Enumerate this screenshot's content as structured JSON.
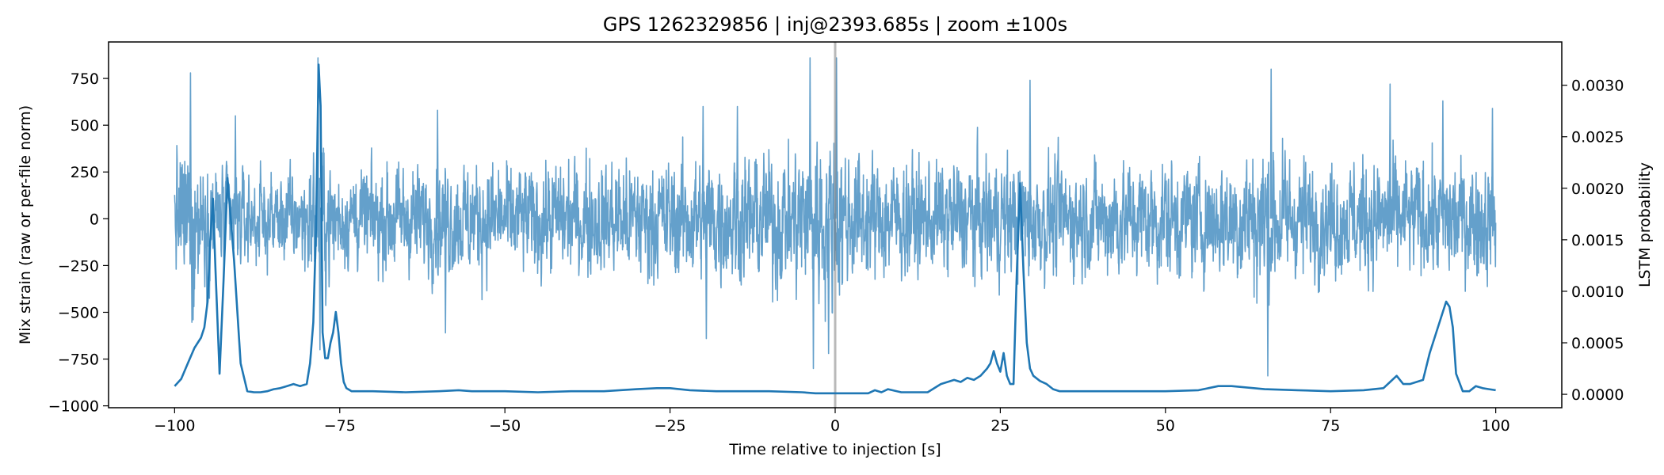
{
  "chart_data": {
    "type": "line",
    "title": "GPS 1262329856 | inj@2393.685s | zoom ±100s",
    "xlabel": "Time relative to injection [s]",
    "ylabel_left": "Mix strain (raw or per-file norm)",
    "ylabel_right": "LSTM probability",
    "xlim": [
      -110,
      110
    ],
    "ylim_left": [
      -1010,
      945
    ],
    "ylim_right": [
      -0.00013,
      0.00342
    ],
    "x_ticks": [
      -100,
      -75,
      -50,
      -25,
      0,
      25,
      50,
      75,
      100
    ],
    "x_tick_labels": [
      "−100",
      "−75",
      "−50",
      "−25",
      "0",
      "25",
      "50",
      "75",
      "100"
    ],
    "y_left_ticks": [
      750,
      500,
      250,
      0,
      -250,
      -500,
      -750,
      -1000
    ],
    "y_left_tick_labels": [
      "750",
      "500",
      "250",
      "0",
      "−250",
      "−500",
      "−750",
      "−1000"
    ],
    "y_right_ticks": [
      0.003,
      0.0025,
      0.002,
      0.0015,
      0.001,
      0.0005,
      0
    ],
    "y_right_tick_labels": [
      "0.0030",
      "0.0025",
      "0.0020",
      "0.0015",
      "0.0010",
      "0.0005",
      "0.0000"
    ],
    "injection_marker_x": 0,
    "series": [
      {
        "name": "Mix strain",
        "axis": "left",
        "color": "#64a0cb",
        "kind": "dense-noise",
        "amplitude_envelope": [
          [
            -100,
            420
          ],
          [
            -97,
            700
          ],
          [
            -96,
            450
          ],
          [
            -93,
            380
          ],
          [
            -90,
            340
          ],
          [
            -87,
            330
          ],
          [
            -84,
            330
          ],
          [
            -81,
            350
          ],
          [
            -78,
            520
          ],
          [
            -77,
            500
          ],
          [
            -75,
            330
          ],
          [
            -70,
            350
          ],
          [
            -65,
            380
          ],
          [
            -60,
            400
          ],
          [
            -55,
            420
          ],
          [
            -50,
            370
          ],
          [
            -45,
            400
          ],
          [
            -40,
            410
          ],
          [
            -35,
            420
          ],
          [
            -30,
            420
          ],
          [
            -25,
            420
          ],
          [
            -20,
            450
          ],
          [
            -15,
            460
          ],
          [
            -10,
            480
          ],
          [
            -5,
            560
          ],
          [
            -3,
            620
          ],
          [
            0,
            600
          ],
          [
            3,
            460
          ],
          [
            5,
            420
          ],
          [
            10,
            420
          ],
          [
            15,
            400
          ],
          [
            20,
            420
          ],
          [
            25,
            420
          ],
          [
            30,
            420
          ],
          [
            35,
            400
          ],
          [
            40,
            420
          ],
          [
            45,
            410
          ],
          [
            50,
            410
          ],
          [
            55,
            420
          ],
          [
            60,
            440
          ],
          [
            65,
            560
          ],
          [
            70,
            420
          ],
          [
            75,
            400
          ],
          [
            80,
            420
          ],
          [
            85,
            430
          ],
          [
            90,
            420
          ],
          [
            95,
            420
          ],
          [
            100,
            420
          ]
        ],
        "peaks": [
          [
            -97.6,
            780
          ],
          [
            -97.2,
            -540
          ],
          [
            -78.3,
            860
          ],
          [
            -78.0,
            -700
          ],
          [
            -3.8,
            860
          ],
          [
            -3.3,
            -800
          ],
          [
            0.2,
            860
          ],
          [
            -1.0,
            -720
          ],
          [
            -60.2,
            580
          ],
          [
            -59.0,
            -610
          ],
          [
            -20.0,
            600
          ],
          [
            -19.5,
            -640
          ],
          [
            -14.8,
            600
          ],
          [
            66.0,
            800
          ],
          [
            65.5,
            -840
          ],
          [
            84.0,
            720
          ],
          [
            92.0,
            630
          ],
          [
            99.5,
            590
          ],
          [
            29.5,
            740
          ],
          [
            -90.8,
            550
          ]
        ]
      },
      {
        "name": "LSTM probability",
        "axis": "right",
        "color": "#1f77b4",
        "x": [
          -100,
          -99,
          -98,
          -97,
          -96,
          -95.5,
          -95,
          -94.6,
          -94.2,
          -93.8,
          -93.2,
          -92.6,
          -92,
          -91,
          -90,
          -89,
          -88,
          -87,
          -86,
          -85,
          -84,
          -83,
          -82,
          -81,
          -80,
          -79.5,
          -79,
          -78.6,
          -78.2,
          -77.9,
          -77.6,
          -77.2,
          -76.8,
          -76.4,
          -76,
          -75.6,
          -75.2,
          -74.8,
          -74.4,
          -74,
          -73.2,
          -72,
          -70,
          -65,
          -60,
          -57,
          -55,
          -50,
          -45,
          -40,
          -35,
          -30,
          -27,
          -25,
          -22,
          -18,
          -15,
          -10,
          -5,
          -3,
          -1,
          0,
          1,
          3,
          5,
          6,
          7,
          8,
          10,
          14,
          16,
          18,
          19,
          20,
          21,
          22,
          23,
          23.5,
          24,
          24.5,
          25,
          25.5,
          26,
          26.5,
          27,
          27.5,
          28,
          28.5,
          29,
          29.5,
          30,
          31,
          32,
          33,
          34,
          35,
          40,
          45,
          50,
          55,
          58,
          60,
          65,
          70,
          75,
          80,
          83,
          84,
          85,
          86,
          87,
          88,
          89,
          90,
          91,
          92,
          92.5,
          93,
          93.5,
          94,
          95,
          96,
          97,
          98,
          99,
          100
        ],
        "values": [
          8e-05,
          0.00015,
          0.0003,
          0.00045,
          0.00055,
          0.00065,
          0.0009,
          0.0015,
          0.0019,
          0.0012,
          0.0002,
          0.0011,
          0.0021,
          0.0013,
          0.0003,
          3e-05,
          2e-05,
          2e-05,
          3e-05,
          5e-05,
          6e-05,
          8e-05,
          0.0001,
          8e-05,
          0.0001,
          0.0003,
          0.0007,
          0.0016,
          0.0032,
          0.0028,
          0.0006,
          0.00035,
          0.00035,
          0.0005,
          0.0006,
          0.0008,
          0.0006,
          0.0003,
          0.00012,
          6e-05,
          3e-05,
          3e-05,
          3e-05,
          2e-05,
          3e-05,
          4e-05,
          3e-05,
          3e-05,
          2e-05,
          3e-05,
          3e-05,
          5e-05,
          6e-05,
          6e-05,
          4e-05,
          3e-05,
          3e-05,
          3e-05,
          2e-05,
          1e-05,
          1e-05,
          1e-05,
          1e-05,
          1e-05,
          1e-05,
          4e-05,
          2e-05,
          5e-05,
          2e-05,
          2e-05,
          0.0001,
          0.00014,
          0.00012,
          0.00016,
          0.00014,
          0.00018,
          0.00025,
          0.0003,
          0.00042,
          0.0003,
          0.00022,
          0.0004,
          0.00018,
          0.0001,
          0.0001,
          0.0012,
          0.00205,
          0.0012,
          0.0005,
          0.00025,
          0.00018,
          0.00013,
          0.0001,
          5e-05,
          3e-05,
          3e-05,
          3e-05,
          3e-05,
          3e-05,
          4e-05,
          8e-05,
          8e-05,
          5e-05,
          4e-05,
          3e-05,
          4e-05,
          6e-05,
          0.00012,
          0.00018,
          0.0001,
          0.0001,
          0.00012,
          0.00014,
          0.0004,
          0.0006,
          0.0008,
          0.0009,
          0.00085,
          0.00065,
          0.0002,
          3e-05,
          3e-05,
          8e-05,
          6e-05,
          5e-05,
          4e-05
        ]
      }
    ]
  }
}
